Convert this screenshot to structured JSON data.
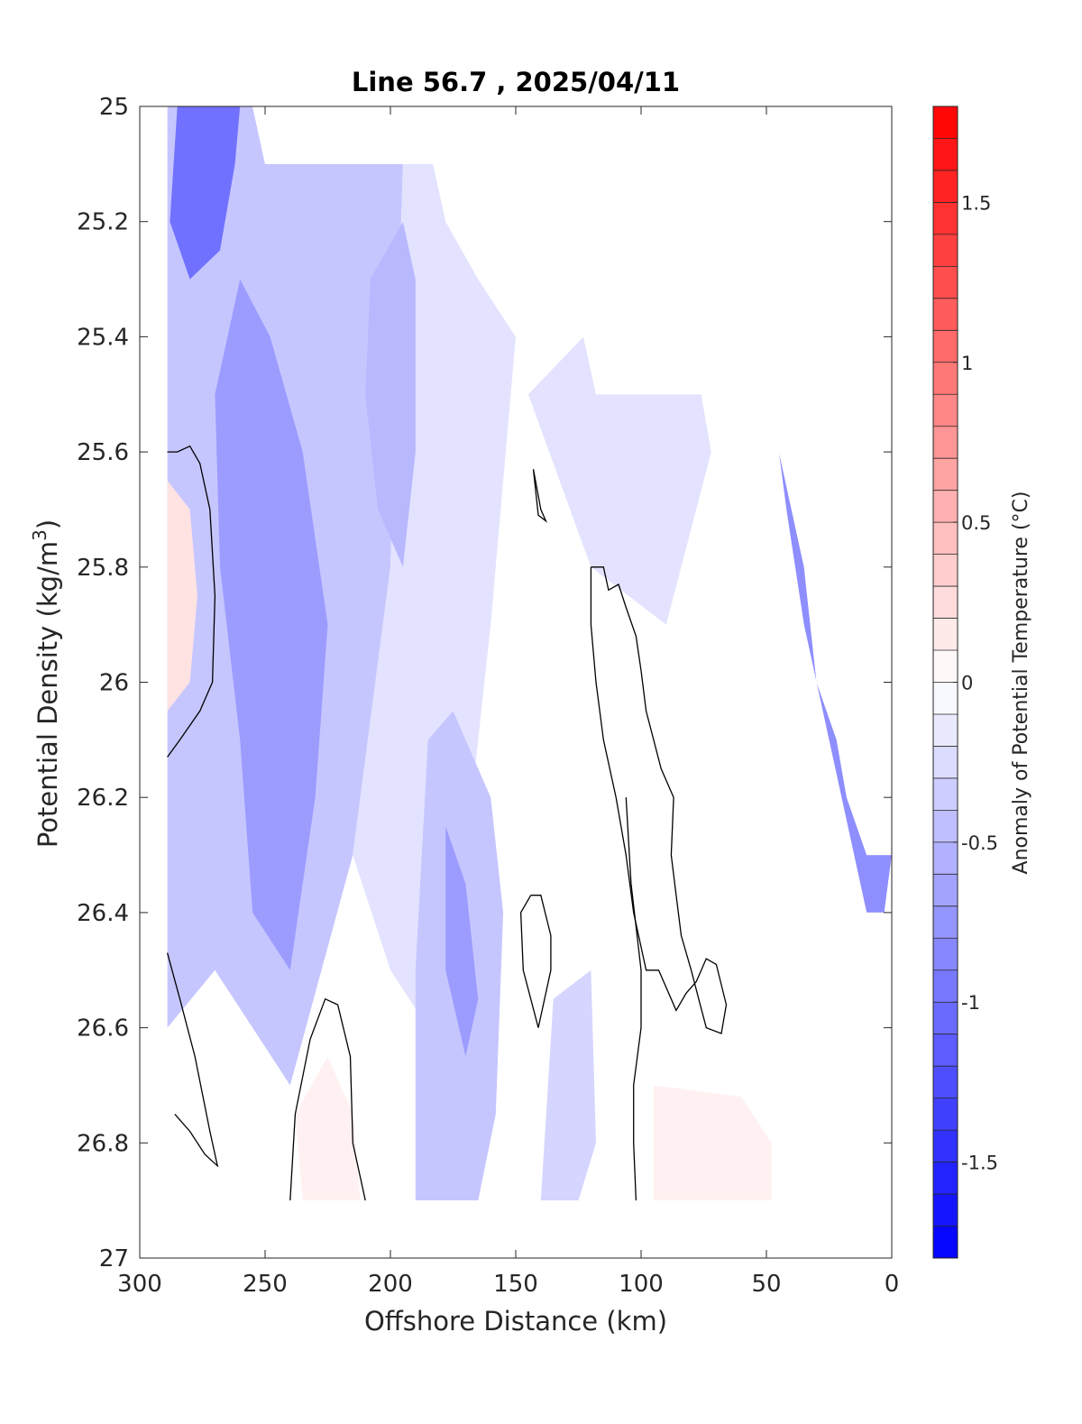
{
  "chart_data": {
    "type": "heatmap",
    "subtype": "filled-contour",
    "title": "Line 56.7 , 2025/04/11",
    "xlabel": "Offshore Distance (km)",
    "ylabel_main": "Potential Density (kg/m",
    "ylabel_sup": "3",
    "ylabel_end": ")",
    "x_reversed": true,
    "y_reversed": true,
    "xlim": [
      0,
      300
    ],
    "ylim": [
      25,
      27
    ],
    "x_ticks": [
      "300",
      "250",
      "200",
      "150",
      "100",
      "50",
      "0"
    ],
    "x_tick_values": [
      300,
      250,
      200,
      150,
      100,
      50,
      0
    ],
    "y_ticks": [
      "25",
      "25.2",
      "25.4",
      "25.6",
      "25.8",
      "26",
      "26.2",
      "26.4",
      "26.6",
      "26.8",
      "27"
    ],
    "y_tick_values": [
      25,
      25.2,
      25.4,
      25.6,
      25.8,
      26,
      26.2,
      26.4,
      26.6,
      26.8,
      27
    ],
    "colorbar": {
      "label": "Anomaly of Potential Temperature (°C)",
      "range": [
        -1.8,
        1.8
      ],
      "step": 0.1,
      "ticks": [
        "-1.5",
        "-1",
        "-0.5",
        "0",
        "0.5",
        "1",
        "1.5"
      ],
      "tick_values": [
        -1.5,
        -1,
        -0.5,
        0,
        0.5,
        1,
        1.5
      ],
      "color_negative": "#0000ff",
      "color_zero": "#ffffff",
      "color_positive": "#ff0000"
    },
    "data_boundary": [
      [
        289,
        25.0
      ],
      [
        255,
        25.0
      ],
      [
        250,
        25.1
      ],
      [
        183,
        25.1
      ],
      [
        178,
        25.2
      ],
      [
        165,
        25.3
      ],
      [
        150,
        25.4
      ],
      [
        123,
        25.4
      ],
      [
        118,
        25.5
      ],
      [
        76,
        25.5
      ],
      [
        72,
        25.6
      ],
      [
        45,
        25.6
      ],
      [
        35,
        25.8
      ],
      [
        30,
        26.0
      ],
      [
        22,
        26.1
      ],
      [
        18,
        26.2
      ],
      [
        10,
        26.3
      ],
      [
        0,
        26.3
      ],
      [
        3,
        26.4
      ],
      [
        23,
        26.4
      ],
      [
        48,
        26.5
      ],
      [
        48,
        26.9
      ],
      [
        289,
        26.9
      ]
    ],
    "anomaly_fields": [
      {
        "value": -0.4,
        "polygon": [
          [
            289,
            25.0
          ],
          [
            255,
            25.0
          ],
          [
            250,
            25.1
          ],
          [
            195,
            25.1
          ],
          [
            200,
            25.8
          ],
          [
            215,
            26.3
          ],
          [
            240,
            26.7
          ],
          [
            270,
            26.5
          ],
          [
            289,
            26.6
          ]
        ]
      },
      {
        "value": -0.2,
        "polygon": [
          [
            195,
            25.1
          ],
          [
            183,
            25.1
          ],
          [
            178,
            25.2
          ],
          [
            165,
            25.3
          ],
          [
            150,
            25.4
          ],
          [
            160,
            25.9
          ],
          [
            170,
            26.3
          ],
          [
            185,
            26.6
          ],
          [
            200,
            26.5
          ],
          [
            215,
            26.3
          ],
          [
            200,
            25.8
          ]
        ]
      },
      {
        "value": -0.2,
        "polygon": [
          [
            123,
            25.4
          ],
          [
            118,
            25.5
          ],
          [
            76,
            25.5
          ],
          [
            72,
            25.6
          ],
          [
            90,
            25.9
          ],
          [
            120,
            25.8
          ],
          [
            145,
            25.5
          ]
        ]
      },
      {
        "value": -0.5,
        "polygon": [
          [
            195,
            25.2
          ],
          [
            208,
            25.3
          ],
          [
            210,
            25.5
          ],
          [
            205,
            25.7
          ],
          [
            195,
            25.8
          ],
          [
            190,
            25.6
          ],
          [
            190,
            25.3
          ]
        ]
      },
      {
        "value": -0.7,
        "polygon": [
          [
            260,
            25.3
          ],
          [
            270,
            25.5
          ],
          [
            268,
            25.8
          ],
          [
            260,
            26.1
          ],
          [
            255,
            26.4
          ],
          [
            240,
            26.5
          ],
          [
            230,
            26.2
          ],
          [
            225,
            25.9
          ],
          [
            235,
            25.6
          ],
          [
            248,
            25.4
          ]
        ]
      },
      {
        "value": -1.0,
        "polygon": [
          [
            285,
            25.0
          ],
          [
            260,
            25.0
          ],
          [
            262,
            25.1
          ],
          [
            268,
            25.25
          ],
          [
            280,
            25.3
          ],
          [
            288,
            25.2
          ]
        ]
      },
      {
        "value": -0.4,
        "polygon": [
          [
            185,
            26.1
          ],
          [
            175,
            26.05
          ],
          [
            160,
            26.2
          ],
          [
            155,
            26.4
          ],
          [
            158,
            26.75
          ],
          [
            165,
            26.9
          ],
          [
            190,
            26.9
          ],
          [
            190,
            26.5
          ]
        ]
      },
      {
        "value": -0.7,
        "polygon": [
          [
            178,
            26.25
          ],
          [
            170,
            26.35
          ],
          [
            165,
            26.55
          ],
          [
            170,
            26.65
          ],
          [
            178,
            26.5
          ]
        ]
      },
      {
        "value": -0.3,
        "polygon": [
          [
            135,
            26.55
          ],
          [
            120,
            26.5
          ],
          [
            118,
            26.8
          ],
          [
            125,
            26.9
          ],
          [
            140,
            26.9
          ]
        ]
      },
      {
        "value": -0.8,
        "polygon": [
          [
            45,
            25.6
          ],
          [
            35,
            25.8
          ],
          [
            30,
            26.0
          ],
          [
            22,
            26.1
          ],
          [
            18,
            26.2
          ],
          [
            10,
            26.3
          ],
          [
            0,
            26.3
          ],
          [
            3,
            26.4
          ],
          [
            10,
            26.4
          ],
          [
            20,
            26.2
          ],
          [
            35,
            25.9
          ],
          [
            42,
            25.7
          ]
        ]
      },
      {
        "value": 0.2,
        "polygon": [
          [
            289,
            25.65
          ],
          [
            280,
            25.7
          ],
          [
            277,
            25.85
          ],
          [
            280,
            26.0
          ],
          [
            289,
            26.05
          ]
        ]
      },
      {
        "value": 0.1,
        "polygon": [
          [
            225,
            26.65
          ],
          [
            215,
            26.75
          ],
          [
            212,
            26.9
          ],
          [
            235,
            26.9
          ],
          [
            238,
            26.75
          ]
        ]
      },
      {
        "value": 0.1,
        "polygon": [
          [
            95,
            26.7
          ],
          [
            60,
            26.72
          ],
          [
            48,
            26.8
          ],
          [
            48,
            26.9
          ],
          [
            95,
            26.9
          ]
        ]
      }
    ],
    "zero_contours": [
      [
        [
          289,
          25.6
        ],
        [
          285,
          25.6
        ],
        [
          280,
          25.59
        ],
        [
          276,
          25.62
        ],
        [
          272,
          25.7
        ],
        [
          270,
          25.85
        ],
        [
          271,
          26.0
        ],
        [
          276,
          26.05
        ],
        [
          284,
          26.1
        ],
        [
          289,
          26.13
        ]
      ],
      [
        [
          289,
          26.47
        ],
        [
          284,
          26.55
        ],
        [
          278,
          26.65
        ],
        [
          272,
          26.78
        ],
        [
          269,
          26.84
        ],
        [
          274,
          26.82
        ],
        [
          280,
          26.78
        ],
        [
          286,
          26.75
        ]
      ],
      [
        [
          240,
          26.9
        ],
        [
          238,
          26.75
        ],
        [
          232,
          26.62
        ],
        [
          226,
          26.55
        ],
        [
          221,
          26.56
        ],
        [
          216,
          26.65
        ],
        [
          215,
          26.8
        ],
        [
          210,
          26.9
        ]
      ],
      [
        [
          143,
          25.63
        ],
        [
          140,
          25.7
        ],
        [
          138,
          25.72
        ],
        [
          141,
          25.71
        ],
        [
          143,
          25.63
        ]
      ],
      [
        [
          144,
          26.37
        ],
        [
          140,
          26.37
        ],
        [
          136,
          26.44
        ],
        [
          136,
          26.5
        ],
        [
          141,
          26.6
        ],
        [
          147,
          26.5
        ],
        [
          148,
          26.4
        ],
        [
          144,
          26.37
        ]
      ],
      [
        [
          120,
          25.8
        ],
        [
          115,
          25.8
        ],
        [
          113,
          25.84
        ],
        [
          109,
          25.83
        ],
        [
          106,
          25.87
        ],
        [
          102,
          25.92
        ],
        [
          100,
          25.98
        ],
        [
          98,
          26.05
        ],
        [
          92,
          26.15
        ],
        [
          87,
          26.2
        ],
        [
          88,
          26.3
        ],
        [
          86,
          26.37
        ],
        [
          84,
          26.44
        ],
        [
          80,
          26.5
        ],
        [
          77,
          26.55
        ],
        [
          74,
          26.6
        ],
        [
          68,
          26.61
        ],
        [
          66,
          26.56
        ],
        [
          70,
          26.49
        ],
        [
          74,
          26.48
        ],
        [
          78,
          26.52
        ],
        [
          82,
          26.54
        ],
        [
          86,
          26.57
        ],
        [
          93,
          26.5
        ],
        [
          98,
          26.5
        ],
        [
          103,
          26.4
        ],
        [
          106,
          26.3
        ],
        [
          110,
          26.2
        ],
        [
          115,
          26.1
        ],
        [
          118,
          26.0
        ],
        [
          120,
          25.9
        ],
        [
          120,
          25.8
        ]
      ],
      [
        [
          106,
          26.2
        ],
        [
          104,
          26.35
        ],
        [
          100,
          26.5
        ],
        [
          100,
          26.6
        ],
        [
          103,
          26.7
        ],
        [
          103,
          26.8
        ],
        [
          102,
          26.9
        ]
      ]
    ]
  }
}
